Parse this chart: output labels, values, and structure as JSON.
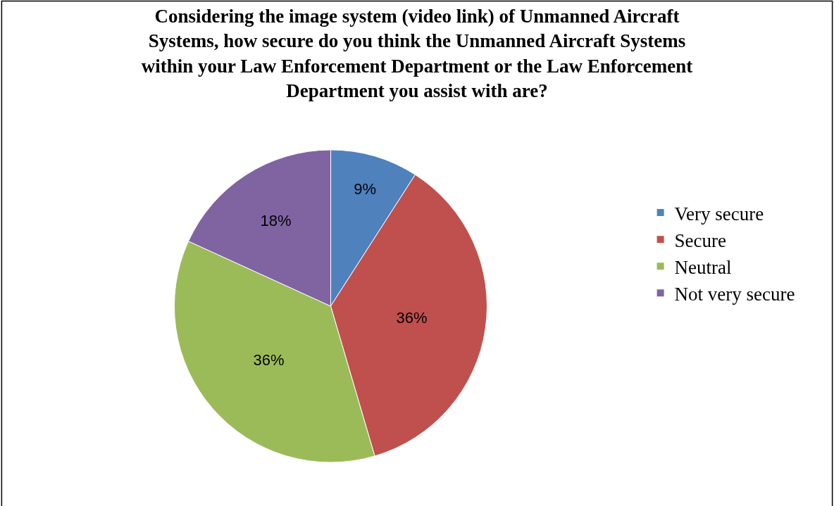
{
  "chart_data": {
    "type": "pie",
    "title": "Considering the image system (video link) of Unmanned Aircraft Systems, how secure do you think the Unmanned Aircraft Systems within your Law Enforcement Department or the Law Enforcement Department you assist with are?",
    "categories": [
      "Very secure",
      "Secure",
      "Neutral",
      "Not very secure"
    ],
    "values": [
      9,
      36,
      36,
      18
    ],
    "value_labels": [
      "9%",
      "36%",
      "36%",
      "18%"
    ],
    "colors": [
      "#4f81bd",
      "#c0504d",
      "#9bbb59",
      "#8064a2"
    ],
    "legend": "right"
  }
}
